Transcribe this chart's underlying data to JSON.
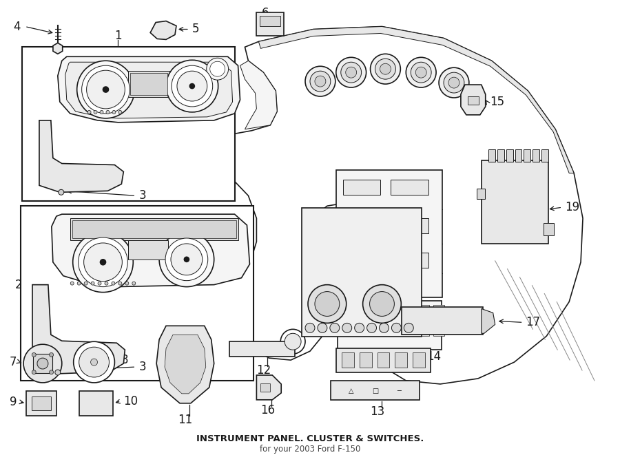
{
  "title": "INSTRUMENT PANEL. CLUSTER & SWITCHES.",
  "subtitle": "for your 2003 Ford F-150",
  "bg": "#ffffff",
  "lc": "#1a1a1a",
  "fig_w": 9.0,
  "fig_h": 6.61,
  "dpi": 100
}
